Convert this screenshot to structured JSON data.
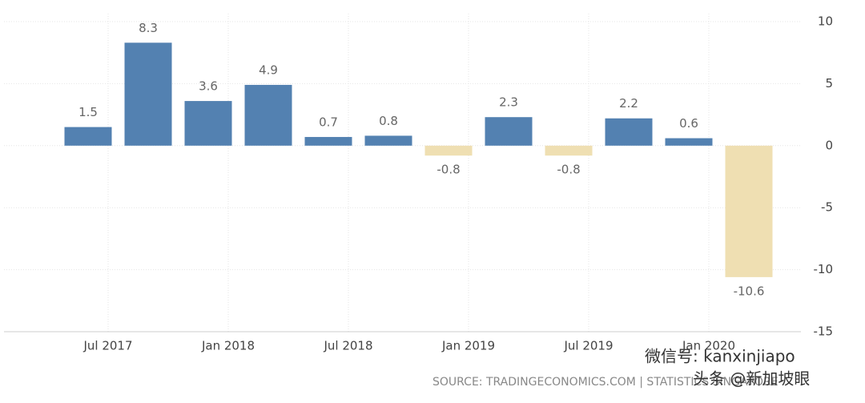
{
  "chart_data": {
    "type": "bar",
    "categories": [
      null,
      null,
      null,
      null,
      null,
      null,
      null,
      null,
      null,
      null,
      null,
      null
    ],
    "values": [
      1.5,
      8.3,
      3.6,
      4.9,
      0.7,
      0.8,
      -0.8,
      2.3,
      -0.8,
      2.2,
      0.6,
      -10.6
    ],
    "colors": {
      "positive": "#5381b1",
      "negative": "#efdfb2"
    },
    "x_labels": [
      "Jul 2017",
      "Jan 2018",
      "Jul 2018",
      "Jan 2019",
      "Jul 2019",
      "Jan 2020"
    ],
    "ylim": [
      -15,
      10
    ],
    "yticks": [
      -15,
      -10,
      -5,
      0,
      5,
      10
    ],
    "grid": true,
    "source": "SOURCE: TRADINGECONOMICS.COM | STATISTICS SINGAPORE",
    "watermarks": [
      "微信号: kanxinjiapo",
      "头条 @新加坡眼"
    ]
  }
}
